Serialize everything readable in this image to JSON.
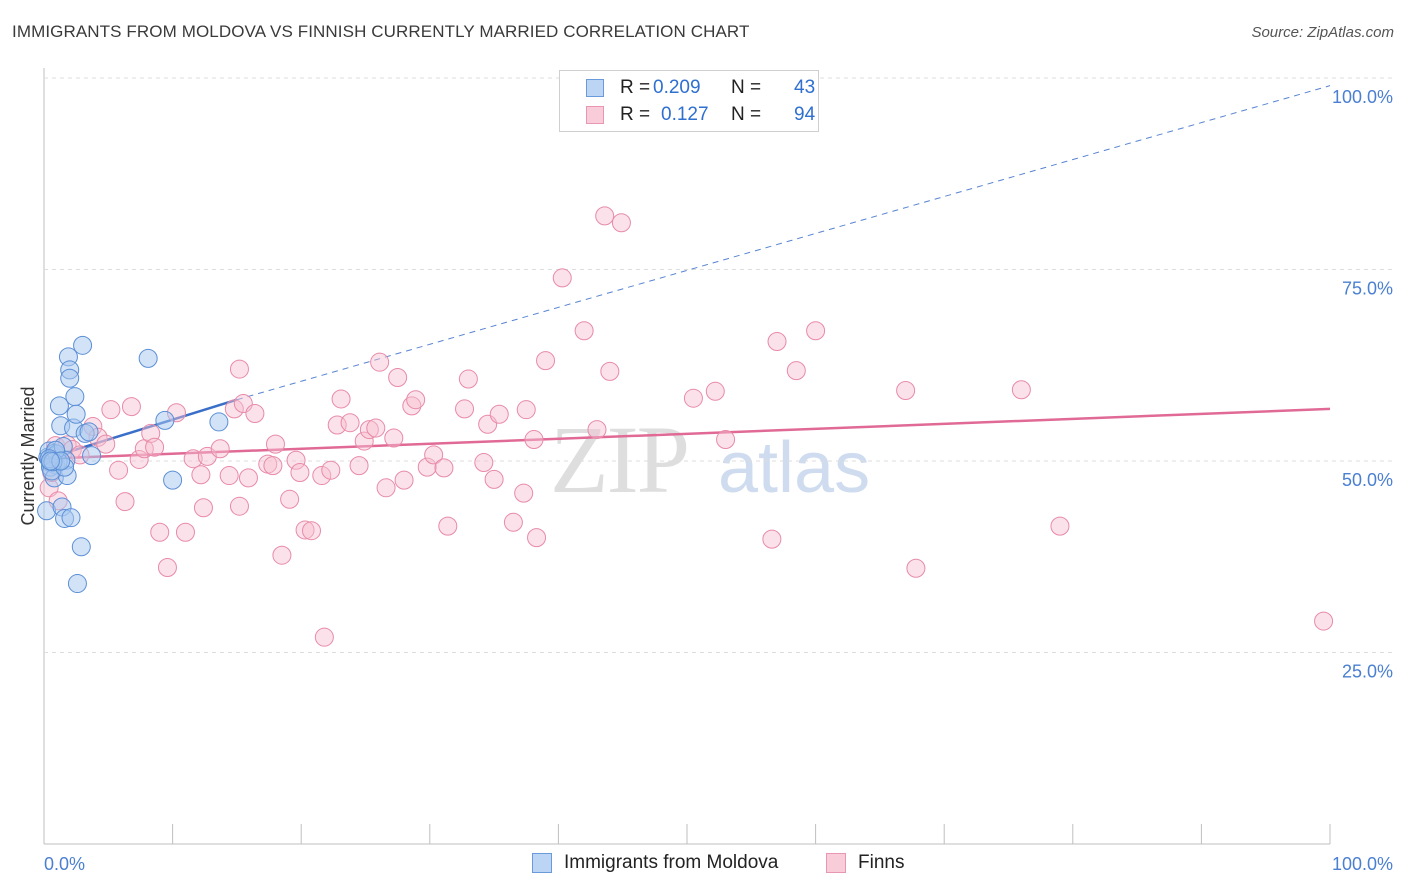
{
  "header": {
    "title": "IMMIGRANTS FROM MOLDOVA VS FINNISH CURRENTLY MARRIED CORRELATION CHART",
    "source": "Source: ZipAtlas.com"
  },
  "watermark": {
    "zip": "ZIP",
    "atlas": "atlas"
  },
  "legend": {
    "r_label": "R =",
    "n_label": "N =",
    "rows": [
      {
        "r": "0.209",
        "n": "43"
      },
      {
        "r": "0.127",
        "n": "94"
      }
    ]
  },
  "bottom_legend": [
    "Immigrants from Moldova",
    "Finns"
  ],
  "colors": {
    "blue_fill": "#a8c8f0",
    "blue_stroke": "#5b8fd6",
    "blue_line": "#3a6fc9",
    "pink_fill": "#f6bfd0",
    "pink_stroke": "#e88aa8",
    "pink_line": "#e06a95",
    "tick_text": "#4a7fd1",
    "grid": "#dddddd"
  },
  "chart_data": {
    "type": "scatter",
    "title": "IMMIGRANTS FROM MOLDOVA VS FINNISH CURRENTLY MARRIED CORRELATION CHART",
    "xlabel": "",
    "ylabel": "Currently Married",
    "xlim": [
      0,
      100
    ],
    "ylim": [
      0,
      100
    ],
    "x_tick_labels": [
      "0.0%",
      "100.0%"
    ],
    "y_ticks": [
      25,
      50,
      75,
      100
    ],
    "y_tick_labels": [
      "25.0%",
      "50.0%",
      "75.0%",
      "100.0%"
    ],
    "grid": true,
    "legend_position": "top-center",
    "series": [
      {
        "name": "Immigrants from Moldova",
        "color": "#5b8fd6",
        "r": 0.209,
        "n": 43,
        "trend": {
          "x": [
            0,
            15
          ],
          "y": [
            50.2,
            58.0
          ],
          "extended_to": [
            100,
            99.0
          ]
        },
        "points": [
          [
            0.3,
            50.5
          ],
          [
            0.4,
            51.3
          ],
          [
            0.5,
            49.8
          ],
          [
            0.6,
            50.2
          ],
          [
            0.7,
            50.6
          ],
          [
            0.8,
            51.0
          ],
          [
            0.9,
            49.5
          ],
          [
            1.0,
            50.9
          ],
          [
            0.2,
            43.5
          ],
          [
            0.5,
            49.2
          ],
          [
            0.8,
            47.8
          ],
          [
            1.2,
            57.2
          ],
          [
            1.3,
            54.6
          ],
          [
            1.4,
            44.0
          ],
          [
            1.5,
            51.9
          ],
          [
            1.7,
            50.1
          ],
          [
            1.6,
            42.5
          ],
          [
            1.8,
            48.1
          ],
          [
            1.9,
            63.6
          ],
          [
            2.0,
            61.9
          ],
          [
            2.0,
            60.8
          ],
          [
            2.1,
            42.6
          ],
          [
            2.3,
            54.3
          ],
          [
            2.4,
            58.4
          ],
          [
            2.5,
            56.1
          ],
          [
            2.6,
            34.0
          ],
          [
            1.1,
            49.9
          ],
          [
            0.6,
            48.7
          ],
          [
            0.9,
            51.4
          ],
          [
            1.6,
            49.2
          ],
          [
            2.9,
            38.8
          ],
          [
            3.0,
            65.1
          ],
          [
            3.2,
            53.6
          ],
          [
            3.5,
            53.8
          ],
          [
            0.4,
            50.3
          ],
          [
            0.7,
            49.9
          ],
          [
            1.3,
            50.0
          ],
          [
            3.7,
            50.7
          ],
          [
            8.1,
            63.4
          ],
          [
            9.4,
            55.3
          ],
          [
            10.0,
            47.5
          ],
          [
            13.6,
            55.1
          ],
          [
            0.5,
            50.0
          ]
        ]
      },
      {
        "name": "Finns",
        "color": "#e88aa8",
        "r": 0.127,
        "n": 94,
        "trend": {
          "x": [
            0,
            100
          ],
          "y": [
            50.3,
            56.8
          ]
        },
        "points": [
          [
            0.4,
            46.5
          ],
          [
            0.6,
            48.5
          ],
          [
            0.9,
            52.0
          ],
          [
            1.1,
            44.8
          ],
          [
            1.8,
            52.1
          ],
          [
            2.2,
            51.5
          ],
          [
            2.8,
            50.8
          ],
          [
            3.8,
            54.5
          ],
          [
            4.2,
            53.1
          ],
          [
            4.8,
            52.2
          ],
          [
            5.2,
            56.7
          ],
          [
            5.8,
            48.8
          ],
          [
            6.3,
            44.7
          ],
          [
            6.8,
            57.1
          ],
          [
            7.4,
            50.2
          ],
          [
            7.8,
            51.6
          ],
          [
            8.3,
            53.6
          ],
          [
            8.6,
            51.8
          ],
          [
            9.6,
            36.1
          ],
          [
            10.3,
            56.3
          ],
          [
            11.0,
            40.7
          ],
          [
            11.6,
            50.3
          ],
          [
            12.2,
            48.2
          ],
          [
            12.4,
            43.9
          ],
          [
            12.7,
            50.6
          ],
          [
            13.7,
            51.6
          ],
          [
            14.4,
            48.1
          ],
          [
            14.8,
            56.8
          ],
          [
            15.2,
            44.1
          ],
          [
            15.5,
            57.5
          ],
          [
            15.9,
            47.8
          ],
          [
            16.4,
            56.2
          ],
          [
            17.4,
            49.6
          ],
          [
            17.8,
            49.4
          ],
          [
            18.0,
            52.2
          ],
          [
            18.5,
            37.7
          ],
          [
            19.1,
            45.0
          ],
          [
            19.6,
            50.1
          ],
          [
            19.9,
            48.5
          ],
          [
            20.3,
            41.0
          ],
          [
            20.8,
            40.9
          ],
          [
            21.6,
            48.1
          ],
          [
            21.8,
            27.0
          ],
          [
            22.3,
            48.8
          ],
          [
            22.8,
            54.7
          ],
          [
            23.1,
            58.1
          ],
          [
            23.8,
            55.0
          ],
          [
            24.5,
            49.4
          ],
          [
            24.9,
            52.6
          ],
          [
            25.3,
            54.1
          ],
          [
            25.8,
            54.3
          ],
          [
            26.1,
            62.9
          ],
          [
            26.6,
            46.5
          ],
          [
            27.2,
            53.0
          ],
          [
            27.5,
            60.9
          ],
          [
            28.0,
            47.5
          ],
          [
            28.6,
            57.2
          ],
          [
            28.9,
            58.0
          ],
          [
            29.8,
            49.2
          ],
          [
            30.3,
            50.8
          ],
          [
            31.1,
            49.1
          ],
          [
            31.4,
            41.5
          ],
          [
            32.7,
            56.8
          ],
          [
            33.0,
            60.7
          ],
          [
            34.2,
            49.8
          ],
          [
            34.5,
            54.8
          ],
          [
            35.0,
            47.6
          ],
          [
            35.4,
            56.1
          ],
          [
            36.5,
            42.0
          ],
          [
            37.3,
            45.8
          ],
          [
            37.5,
            56.7
          ],
          [
            38.1,
            52.8
          ],
          [
            38.3,
            40.0
          ],
          [
            39.0,
            63.1
          ],
          [
            40.3,
            73.9
          ],
          [
            42.0,
            67.0
          ],
          [
            43.0,
            54.1
          ],
          [
            43.6,
            82.0
          ],
          [
            44.0,
            61.7
          ],
          [
            44.9,
            81.1
          ],
          [
            50.5,
            58.2
          ],
          [
            52.2,
            59.1
          ],
          [
            53.0,
            52.8
          ],
          [
            56.6,
            39.8
          ],
          [
            57.0,
            65.6
          ],
          [
            58.5,
            61.8
          ],
          [
            60.0,
            67.0
          ],
          [
            67.0,
            59.2
          ],
          [
            67.8,
            36.0
          ],
          [
            76.0,
            59.3
          ],
          [
            79.0,
            41.5
          ],
          [
            99.5,
            29.1
          ],
          [
            9.0,
            40.7
          ],
          [
            15.2,
            62.0
          ]
        ]
      }
    ]
  }
}
